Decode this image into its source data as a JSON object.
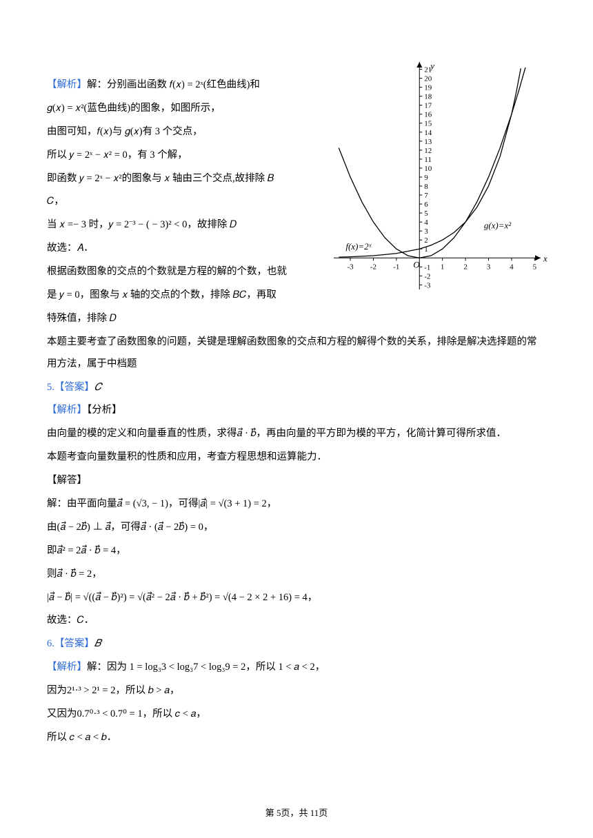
{
  "q4": {
    "heading_label": "【解析】",
    "heading_text": "解：分别画出函数 𝑓(𝑥) = 2ˣ(红色曲线)和",
    "l2": "𝑔(𝑥) = 𝑥²(蓝色曲线)的图象，如图所示，",
    "l3": "由图可知，𝑓(𝑥)与 𝑔(𝑥)有 3 个交点，",
    "l4": "所以 𝑦 = 2ˣ − 𝑥² = 0，有 3 个解，",
    "l5a": "即函数 𝑦 = 2ˣ − 𝑥²的图象与 𝑥 轴由三个交点,故排除 𝐵",
    "l5b": "𝐶，",
    "l6": "当 𝑥 =− 3 时，𝑦 = 2⁻³ − ( − 3)² < 0，故排除 𝐷",
    "l7": "故选：𝐴．",
    "l8a": "根据函数图象的交点的个数就是方程的解的个数，也就",
    "l8b": "是 𝑦 = 0，图象与 𝑥 轴的交点的个数，排除 𝐵𝐶，再取",
    "l8c": "特殊值，排除 𝐷",
    "l9": "本题主要考查了函数图象的问题，关键是理解函数图象的交点和方程的解得个数的关系，排除是解决选择题的常用方法，属于中档题"
  },
  "q5": {
    "ans_label": "5.【答案】",
    "ans_val": "𝐶",
    "parse_label": "【解析】",
    "parse_text": "【分析】",
    "l1": "由向量的模的定义和向量垂直的性质，求得𝑎⃗ · 𝑏⃗，再由向量的平方即为模的平方，化简计算可得所求值．",
    "l2": "本题考查向量数量积的性质和应用，考查方程思想和运算能力．",
    "solve": "【解答】",
    "s1": "解：由平面向量𝑎⃗ = (√3, − 1)，可得|𝑎⃗| = √(3 + 1) = 2，",
    "s2": "由(𝑎⃗ − 2𝑏⃗) ⊥ 𝑎⃗，可得𝑎⃗ · (𝑎⃗ − 2𝑏⃗) = 0，",
    "s3": "即𝑎⃗² = 2𝑎⃗ · 𝑏⃗ = 4，",
    "s4": "则𝑎⃗ · 𝑏⃗ = 2，",
    "s5": "|𝑎⃗ − 𝑏⃗| = √((𝑎⃗ − 𝑏⃗)²) = √(𝑎⃗² − 2𝑎⃗ · 𝑏⃗ + 𝑏⃗²) = √(4 − 2 × 2 + 16) = 4，",
    "s6": "故选：𝐶．"
  },
  "q6": {
    "ans_label": "6.【答案】",
    "ans_val": "𝐵",
    "parse_label": "【解析】",
    "l1": "解：因为 1 = log₃3 < log₃7 < log₃9 = 2，所以 1 < 𝑎 < 2，",
    "l2": "因为2¹·³ > 2¹ = 2，所以 𝑏 > 𝑎，",
    "l3": "又因为0.7⁰·³ < 0.7⁰ = 1，所以 𝑐 < 𝑎，",
    "l4": "所以 𝑐 < 𝑎 < 𝑏．"
  },
  "footer": {
    "pre": "第 ",
    "cur": "5",
    "mid": "页，共 ",
    "total": "11",
    "suf": "页"
  },
  "chart": {
    "type": "line",
    "x_range": [
      -3.6,
      5.2
    ],
    "y_range": [
      -3.2,
      21.5
    ],
    "x_ticks": [
      -3,
      -2,
      -1,
      1,
      2,
      3,
      4,
      5
    ],
    "y_ticks_top": [
      1,
      2,
      3,
      4,
      5,
      6,
      7,
      8,
      9,
      10,
      11,
      12,
      13,
      14,
      15,
      16,
      17,
      18,
      19,
      20,
      21
    ],
    "y_ticks_bottom": [
      -1,
      -2,
      -3
    ],
    "axis_color": "#000000",
    "curve_color": "#000000",
    "curve_width": 1.3,
    "tick_fontsize": 11,
    "label_fontsize": 13,
    "x_axis_label": "x",
    "y_axis_label": "y",
    "f_label": "f(x)=2ˣ",
    "g_label": "g(x)=x²",
    "origin_label": "O",
    "series": {
      "exp": [
        [
          -3.5,
          0.088
        ],
        [
          -3,
          0.125
        ],
        [
          -2,
          0.25
        ],
        [
          -1,
          0.5
        ],
        [
          0,
          1
        ],
        [
          0.5,
          1.414
        ],
        [
          1,
          2
        ],
        [
          1.5,
          2.83
        ],
        [
          2,
          4
        ],
        [
          2.5,
          5.66
        ],
        [
          3,
          8
        ],
        [
          3.5,
          11.3
        ],
        [
          4,
          16
        ],
        [
          4.2,
          18.4
        ],
        [
          4.4,
          21.1
        ]
      ],
      "sq": [
        [
          -3.5,
          12.25
        ],
        [
          -3,
          9
        ],
        [
          -2.5,
          6.25
        ],
        [
          -2,
          4
        ],
        [
          -1.5,
          2.25
        ],
        [
          -1,
          1
        ],
        [
          -0.5,
          0.25
        ],
        [
          0,
          0
        ],
        [
          0.5,
          0.25
        ],
        [
          1,
          1
        ],
        [
          1.5,
          2.25
        ],
        [
          2,
          4
        ],
        [
          2.5,
          6.25
        ],
        [
          3,
          9
        ],
        [
          3.5,
          12.25
        ],
        [
          4,
          16
        ],
        [
          4.3,
          18.5
        ],
        [
          4.6,
          21.2
        ]
      ]
    }
  }
}
